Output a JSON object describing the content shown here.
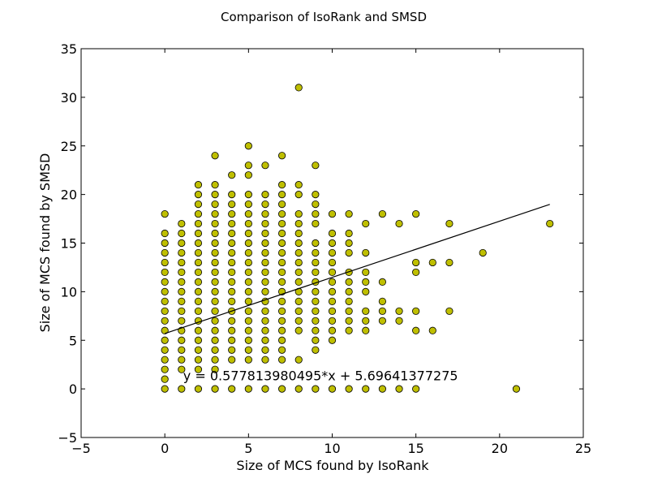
{
  "chart_data": {
    "type": "scatter",
    "title": "Comparison of IsoRank and SMSD",
    "xlabel": "Size of MCS found by IsoRank",
    "ylabel": "Size of MCS found by SMSD",
    "xlim": [
      -5,
      25
    ],
    "ylim": [
      -5,
      35
    ],
    "xticks": [
      -5,
      0,
      5,
      10,
      15,
      20,
      25
    ],
    "yticks": [
      -5,
      0,
      5,
      10,
      15,
      20,
      25,
      30,
      35
    ],
    "xtick_labels": [
      "−5",
      "0",
      "5",
      "10",
      "15",
      "20",
      "25"
    ],
    "ytick_labels": [
      "−5",
      "0",
      "5",
      "10",
      "15",
      "20",
      "25",
      "30",
      "35"
    ],
    "grid": false,
    "marker_color": "#bfbf00",
    "marker_edge_color": "#000000",
    "fit_line": {
      "slope": 0.577813980495,
      "intercept": 5.69641377275,
      "x_range": [
        0,
        23
      ],
      "color": "#000000"
    },
    "annotation": {
      "text": "y = 0.577813980495*x + 5.69641377275",
      "x": 1,
      "y": 1.3
    },
    "columns": [
      {
        "x": 0,
        "y": [
          0,
          1,
          2,
          3,
          4,
          5,
          6,
          7,
          8,
          9,
          10,
          11,
          12,
          13,
          14,
          15,
          16,
          18
        ]
      },
      {
        "x": 1,
        "y": [
          0,
          2,
          3,
          4,
          5,
          6,
          7,
          8,
          9,
          10,
          11,
          12,
          13,
          14,
          15,
          16,
          17
        ]
      },
      {
        "x": 2,
        "y": [
          0,
          2,
          3,
          4,
          5,
          6,
          7,
          8,
          9,
          10,
          11,
          12,
          13,
          14,
          15,
          16,
          17,
          18,
          19,
          20,
          21
        ]
      },
      {
        "x": 3,
        "y": [
          0,
          2,
          3,
          4,
          5,
          6,
          7,
          8,
          9,
          10,
          11,
          12,
          13,
          14,
          15,
          16,
          17,
          18,
          19,
          20,
          21,
          24
        ]
      },
      {
        "x": 4,
        "y": [
          0,
          3,
          4,
          5,
          6,
          7,
          8,
          9,
          10,
          11,
          12,
          13,
          14,
          15,
          16,
          17,
          18,
          19,
          20,
          22
        ]
      },
      {
        "x": 5,
        "y": [
          0,
          3,
          4,
          5,
          6,
          7,
          8,
          9,
          10,
          11,
          12,
          13,
          14,
          15,
          16,
          17,
          18,
          19,
          20,
          22,
          23,
          25
        ]
      },
      {
        "x": 6,
        "y": [
          0,
          3,
          4,
          5,
          6,
          7,
          8,
          9,
          10,
          11,
          12,
          13,
          14,
          15,
          16,
          17,
          18,
          19,
          20,
          23
        ]
      },
      {
        "x": 7,
        "y": [
          0,
          3,
          4,
          5,
          6,
          7,
          8,
          9,
          10,
          11,
          12,
          13,
          14,
          15,
          16,
          17,
          18,
          19,
          20,
          21,
          24
        ]
      },
      {
        "x": 8,
        "y": [
          0,
          3,
          6,
          7,
          8,
          9,
          10,
          11,
          12,
          13,
          14,
          15,
          16,
          17,
          18,
          20,
          21,
          31
        ]
      },
      {
        "x": 9,
        "y": [
          0,
          4,
          5,
          6,
          7,
          8,
          9,
          10,
          11,
          12,
          13,
          14,
          15,
          17,
          18,
          19,
          20,
          23
        ]
      },
      {
        "x": 10,
        "y": [
          0,
          5,
          6,
          7,
          8,
          9,
          10,
          11,
          12,
          13,
          14,
          15,
          16,
          18
        ]
      },
      {
        "x": 11,
        "y": [
          0,
          6,
          7,
          8,
          9,
          10,
          11,
          12,
          14,
          15,
          16,
          18
        ]
      },
      {
        "x": 12,
        "y": [
          0,
          6,
          7,
          8,
          10,
          11,
          12,
          14,
          17
        ]
      },
      {
        "x": 13,
        "y": [
          0,
          7,
          8,
          9,
          11,
          18
        ]
      },
      {
        "x": 14,
        "y": [
          0,
          7,
          8,
          17
        ]
      },
      {
        "x": 15,
        "y": [
          0,
          6,
          8,
          12,
          13,
          18
        ]
      },
      {
        "x": 16,
        "y": [
          6,
          13
        ]
      },
      {
        "x": 17,
        "y": [
          8,
          13,
          17
        ]
      },
      {
        "x": 19,
        "y": [
          14
        ]
      },
      {
        "x": 21,
        "y": [
          0
        ]
      },
      {
        "x": 23,
        "y": [
          17
        ]
      }
    ]
  }
}
